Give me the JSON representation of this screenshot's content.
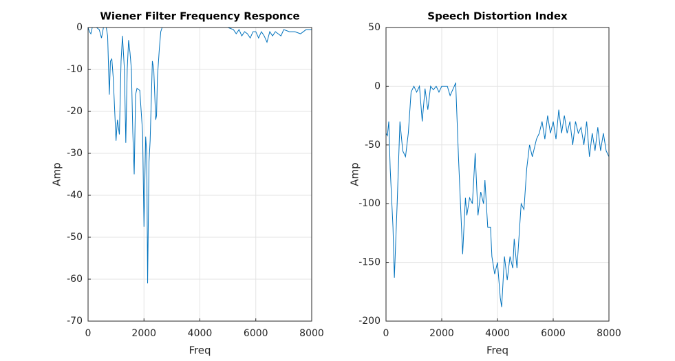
{
  "chart_data": [
    {
      "type": "line",
      "title": "Wiener Filter Frequency Responce",
      "x_label": "Freq",
      "y_label": "Amp",
      "color": "#0072bd",
      "grid": true,
      "xlim": [
        0,
        8000
      ],
      "xticks": [
        0,
        2000,
        4000,
        6000,
        8000
      ],
      "ylim": [
        -70,
        0
      ],
      "yticks": [
        -70,
        -60,
        -50,
        -40,
        -30,
        -20,
        -10,
        0
      ],
      "x": [
        0,
        50,
        100,
        150,
        200,
        300,
        400,
        480,
        550,
        650,
        700,
        760,
        800,
        850,
        900,
        1000,
        1050,
        1120,
        1180,
        1230,
        1300,
        1350,
        1400,
        1450,
        1500,
        1550,
        1600,
        1650,
        1700,
        1750,
        1850,
        1900,
        1950,
        2000,
        2060,
        2100,
        2130,
        2180,
        2220,
        2250,
        2300,
        2350,
        2420,
        2450,
        2480,
        2550,
        2600,
        2650,
        3000,
        4000,
        5000,
        5200,
        5300,
        5400,
        5500,
        5600,
        5700,
        5800,
        5900,
        6000,
        6100,
        6200,
        6300,
        6400,
        6500,
        6600,
        6700,
        6800,
        6900,
        7000,
        7200,
        7400,
        7600,
        7800,
        8000
      ],
      "values": [
        0,
        -1,
        -1.5,
        0,
        0,
        0,
        -0.5,
        -2.5,
        0,
        0,
        -2,
        -16,
        -8,
        -7.5,
        -12,
        -27,
        -22,
        -25.5,
        -8,
        -2,
        -10,
        -27.5,
        -10,
        -3,
        -6,
        -10,
        -25,
        -35,
        -16,
        -14.5,
        -15,
        -20,
        -25,
        -47.5,
        -26,
        -30,
        -61,
        -32,
        -27,
        -20,
        -8,
        -10,
        -22,
        -21,
        -12,
        -5,
        -1,
        0,
        0,
        0,
        0,
        -0.5,
        -1.5,
        -0.5,
        -2,
        -1,
        -1.5,
        -2.5,
        -1,
        -1,
        -2.5,
        -1,
        -2,
        -3.5,
        -1,
        -2,
        -1,
        -1.5,
        -2,
        -0.5,
        -1,
        -1,
        -1.5,
        -0.5,
        -0.5
      ]
    },
    {
      "type": "line",
      "title": "Speech Distortion Index",
      "x_label": "Freq",
      "y_label": "Amp",
      "color": "#0072bd",
      "grid": true,
      "xlim": [
        0,
        8000
      ],
      "xticks": [
        0,
        2000,
        4000,
        6000,
        8000
      ],
      "ylim": [
        -200,
        50
      ],
      "yticks": [
        -200,
        -150,
        -100,
        -50,
        0,
        50
      ],
      "x": [
        0,
        50,
        100,
        150,
        250,
        300,
        400,
        500,
        600,
        700,
        800,
        900,
        1000,
        1100,
        1200,
        1300,
        1400,
        1500,
        1600,
        1700,
        1800,
        1900,
        2000,
        2200,
        2300,
        2450,
        2500,
        2600,
        2750,
        2850,
        2900,
        3000,
        3100,
        3200,
        3300,
        3400,
        3500,
        3550,
        3650,
        3750,
        3800,
        3900,
        4000,
        4100,
        4150,
        4250,
        4350,
        4450,
        4550,
        4600,
        4700,
        4850,
        4950,
        5050,
        5150,
        5250,
        5400,
        5500,
        5600,
        5700,
        5800,
        5900,
        6000,
        6100,
        6200,
        6300,
        6400,
        6500,
        6600,
        6700,
        6800,
        6900,
        7000,
        7100,
        7200,
        7300,
        7400,
        7500,
        7600,
        7700,
        7800,
        7900,
        8000
      ],
      "values": [
        -40,
        -42,
        -30,
        -70,
        -120,
        -163,
        -100,
        -30,
        -55,
        -60,
        -40,
        -5,
        0,
        -5,
        0,
        -30,
        -2,
        -20,
        0,
        -3,
        0,
        -5,
        0,
        0,
        -8,
        0,
        3,
        -60,
        -143,
        -95,
        -110,
        -95,
        -100,
        -57,
        -110,
        -90,
        -100,
        -80,
        -120,
        -120,
        -145,
        -160,
        -150,
        -180,
        -188,
        -145,
        -165,
        -145,
        -155,
        -130,
        -155,
        -100,
        -105,
        -70,
        -50,
        -60,
        -45,
        -40,
        -30,
        -45,
        -25,
        -40,
        -30,
        -45,
        -20,
        -40,
        -25,
        -40,
        -30,
        -50,
        -30,
        -40,
        -35,
        -50,
        -30,
        -60,
        -40,
        -55,
        -35,
        -55,
        -40,
        -55,
        -60
      ]
    }
  ]
}
